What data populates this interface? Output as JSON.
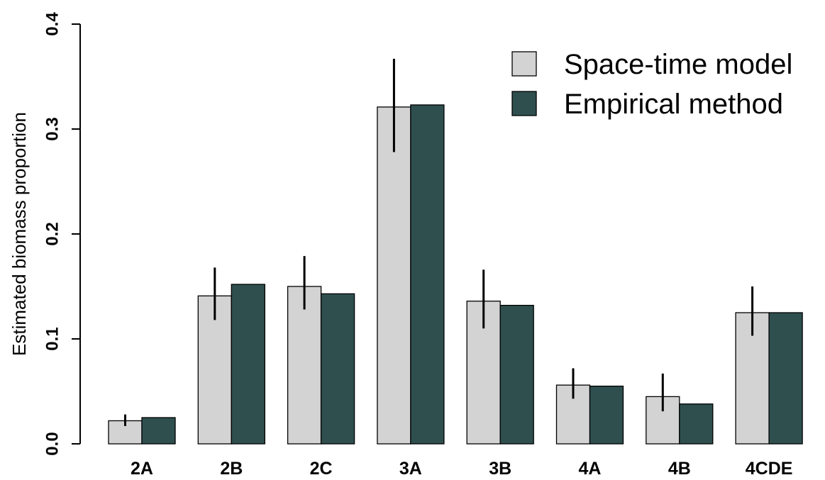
{
  "chart_data": {
    "type": "bar",
    "title": "",
    "xlabel": "",
    "ylabel": "Estimated biomass proportion",
    "ylim": [
      0,
      0.4
    ],
    "yticks": [
      "0.0",
      "0.1",
      "0.2",
      "0.3",
      "0.4"
    ],
    "categories": [
      "2A",
      "2B",
      "2C",
      "3A",
      "3B",
      "4A",
      "4B",
      "4CDE"
    ],
    "series": [
      {
        "name": "Space-time model",
        "color": "#d3d3d3",
        "values": [
          0.022,
          0.141,
          0.15,
          0.321,
          0.136,
          0.056,
          0.045,
          0.125
        ],
        "error_low": [
          0.017,
          0.118,
          0.128,
          0.278,
          0.11,
          0.043,
          0.031,
          0.103
        ],
        "error_high": [
          0.028,
          0.168,
          0.179,
          0.367,
          0.166,
          0.072,
          0.067,
          0.15
        ]
      },
      {
        "name": "Empirical method",
        "color": "#2f4f4f",
        "values": [
          0.025,
          0.152,
          0.143,
          0.323,
          0.132,
          0.055,
          0.038,
          0.125
        ]
      }
    ],
    "legend": {
      "position": "top-right"
    },
    "grid": false
  }
}
